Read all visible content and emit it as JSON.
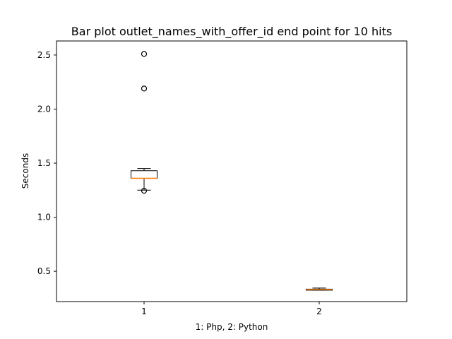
{
  "chart_data": {
    "type": "box",
    "title": "Bar plot outlet_names_with_offer_id end point for 10 hits",
    "xlabel": "1: Php, 2: Python",
    "ylabel": "Seconds",
    "ylim": [
      0.22,
      2.63
    ],
    "y_ticks": [
      0.5,
      1.0,
      1.5,
      2.0,
      2.5
    ],
    "y_tick_labels": [
      "0.5",
      "1.0",
      "1.5",
      "2.0",
      "2.5"
    ],
    "categories": [
      "1",
      "2"
    ],
    "boxes": [
      {
        "position": 1,
        "label": "1",
        "whisker_low": 1.25,
        "q1": 1.36,
        "median": 1.36,
        "q3": 1.43,
        "whisker_high": 1.45,
        "outliers": [
          2.51,
          2.19,
          1.245
        ]
      },
      {
        "position": 2,
        "label": "2",
        "whisker_low": 0.325,
        "q1": 0.325,
        "median": 0.33,
        "q3": 0.335,
        "whisker_high": 0.345,
        "outliers": []
      }
    ],
    "colors": {
      "median": "#ff7f0e",
      "box": "#000000"
    },
    "grid": false
  }
}
